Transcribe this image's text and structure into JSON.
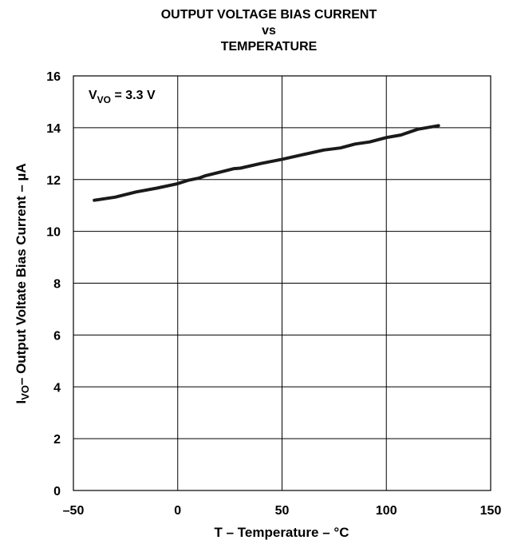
{
  "chart_data": {
    "type": "line",
    "title_lines": [
      "OUTPUT VOLTAGE BIAS CURRENT",
      "vs",
      "TEMPERATURE"
    ],
    "xlabel": "T – Temperature – °C",
    "ylabel": {
      "main": "I",
      "sub": "VO",
      "rest": "– Output Voltate Bias Current – µA"
    },
    "annotation": {
      "main": "V",
      "sub": "VO",
      "rest": " = 3.3 V"
    },
    "xlim": [
      -50,
      150
    ],
    "ylim": [
      0,
      16
    ],
    "xticks": [
      -50,
      0,
      50,
      100,
      150
    ],
    "xtick_labels": [
      "–50",
      "0",
      "50",
      "100",
      "150"
    ],
    "yticks": [
      0,
      2,
      4,
      6,
      8,
      10,
      12,
      14,
      16
    ],
    "ytick_labels": [
      "0",
      "2",
      "4",
      "6",
      "8",
      "10",
      "12",
      "14",
      "16"
    ],
    "grid": true,
    "series": [
      {
        "x": [
          -40,
          -30,
          -20,
          -10,
          0,
          5,
          10,
          13,
          20,
          27,
          30,
          40,
          50,
          60,
          70,
          78,
          85,
          92,
          100,
          107,
          115,
          125
        ],
        "y": [
          11.2,
          11.32,
          11.52,
          11.67,
          11.84,
          11.97,
          12.05,
          12.14,
          12.28,
          12.42,
          12.44,
          12.62,
          12.78,
          12.96,
          13.14,
          13.22,
          13.37,
          13.45,
          13.62,
          13.72,
          13.94,
          14.08
        ]
      }
    ]
  }
}
